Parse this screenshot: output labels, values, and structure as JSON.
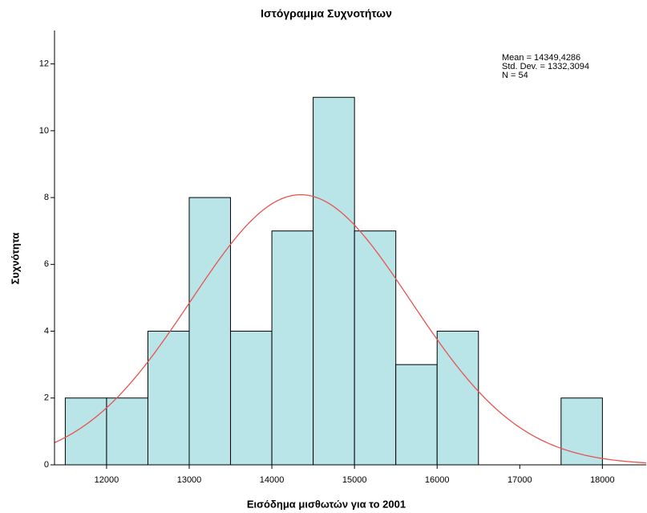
{
  "chart_data": {
    "type": "histogram",
    "title": "Ιστόγραμμα Συχνοτήτων",
    "xlabel": "Εισόδημα μισθωτών για το 2001",
    "ylabel": "Συχνότητα",
    "bins": [
      11500,
      12000,
      12500,
      13000,
      13500,
      14000,
      14500,
      15000,
      15500,
      16000,
      16500,
      17000,
      17500,
      18000
    ],
    "values": [
      2,
      2,
      4,
      8,
      4,
      7,
      11,
      7,
      3,
      4,
      0,
      0,
      2
    ],
    "color": "#b9e5e8",
    "curve_color": "#e8534f",
    "xlim": [
      11370,
      18530
    ],
    "ylim": [
      0,
      13
    ],
    "xticks": [
      12000,
      13000,
      14000,
      15000,
      16000,
      17000,
      18000
    ],
    "yticks": [
      0,
      2,
      4,
      6,
      8,
      10,
      12
    ],
    "stats": {
      "mean": {
        "value": 14349.4286,
        "label": "Mean = 14349,4286"
      },
      "sd": {
        "value": 1332.3094,
        "label": "Std. Dev. = 1332,3094"
      },
      "n": {
        "value": 54,
        "label": "N = 54"
      }
    }
  }
}
